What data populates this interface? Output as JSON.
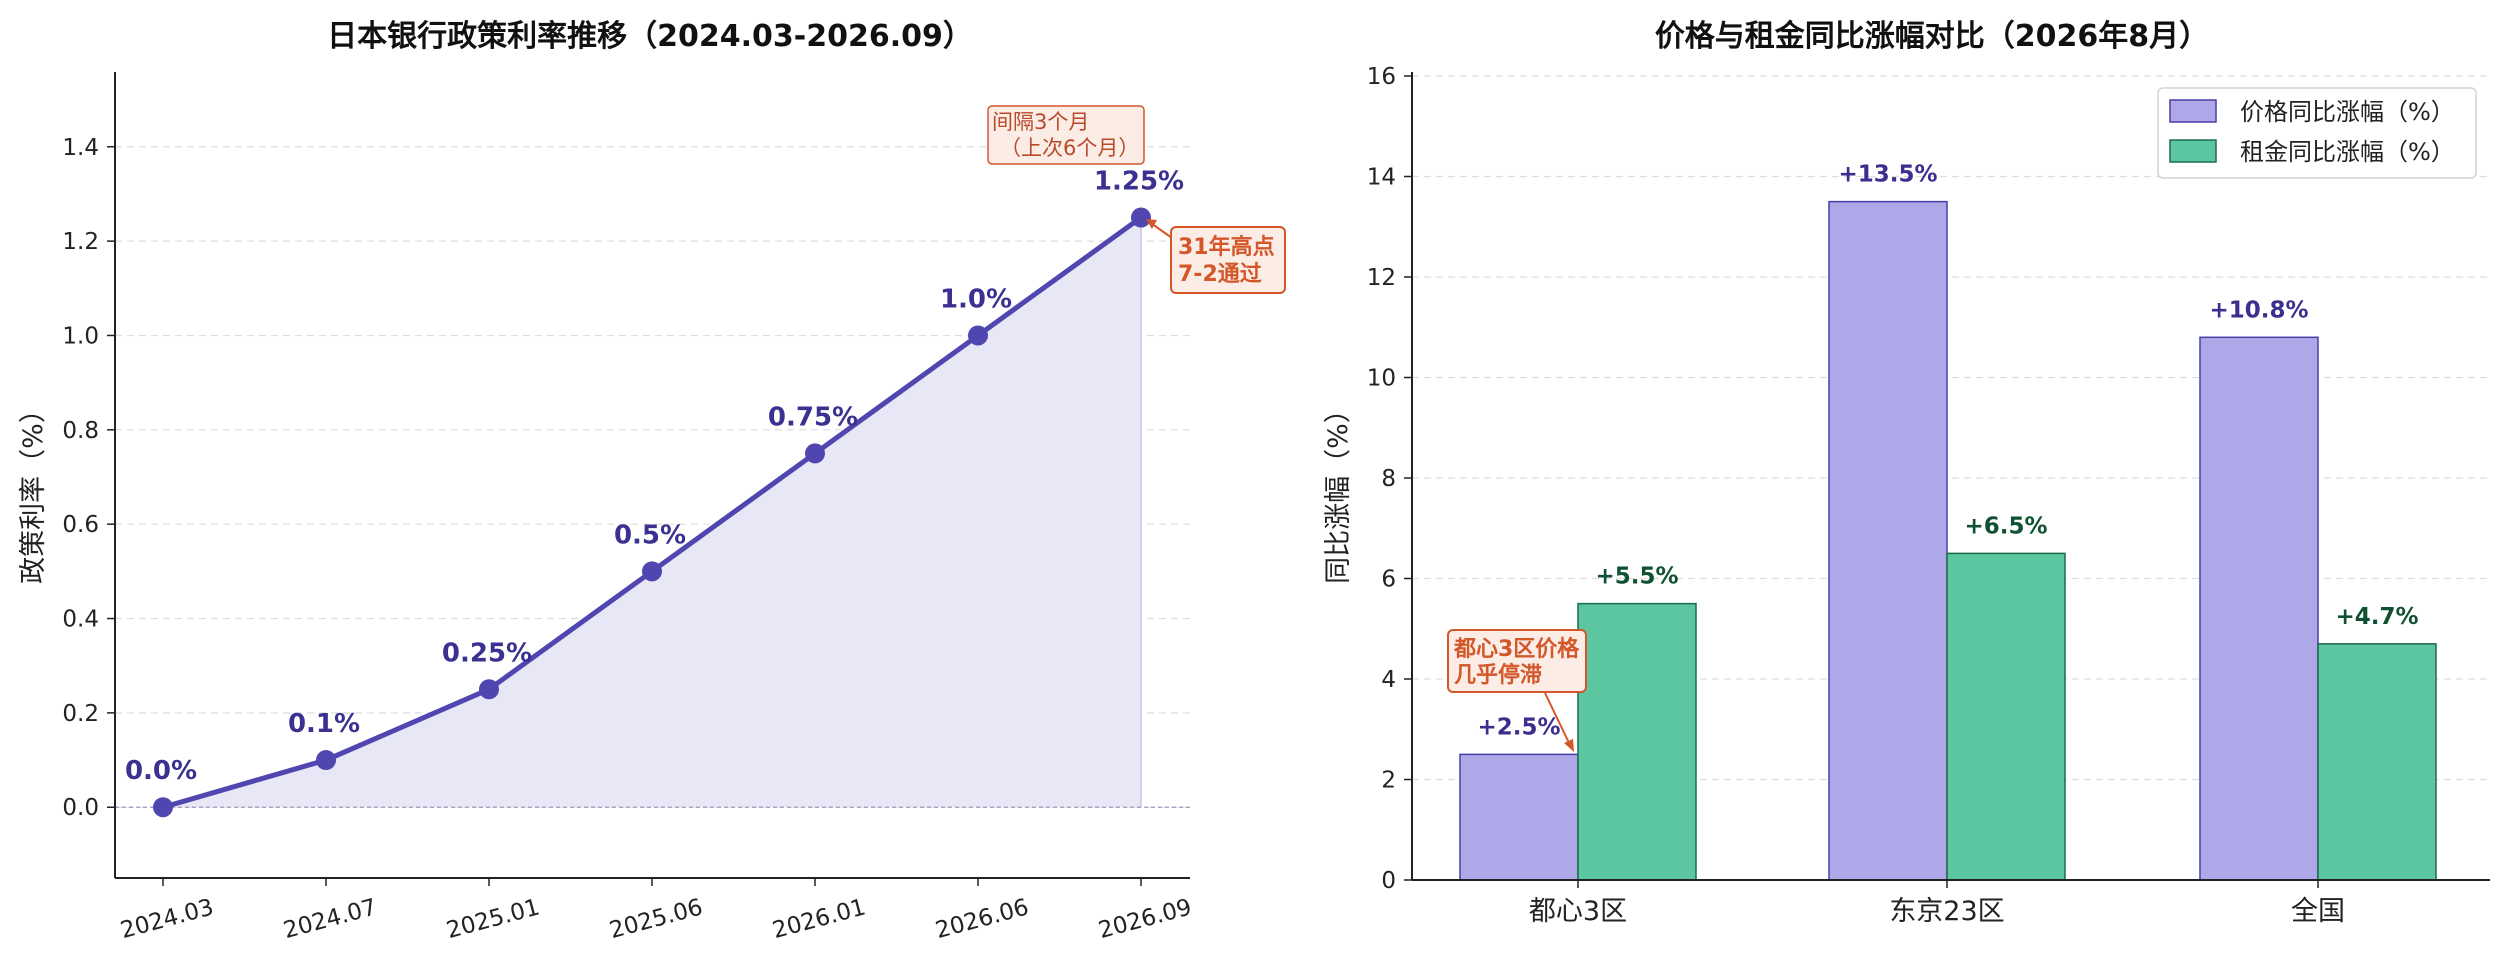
{
  "chart_data": [
    {
      "type": "line",
      "title": "日本银行政策利率推移（2024.03-2026.09）",
      "ylabel": "政策利率（%）",
      "xlabel": "",
      "x": [
        "2024.03",
        "2024.07",
        "2025.01",
        "2025.06",
        "2026.01",
        "2026.06",
        "2026.09"
      ],
      "values": [
        0.0,
        0.1,
        0.25,
        0.5,
        0.75,
        1.0,
        1.25
      ],
      "data_labels": [
        "0.0%",
        "0.1%",
        "0.25%",
        "0.5%",
        "0.75%",
        "1.0%",
        "1.25%"
      ],
      "ylim": [
        -0.15,
        1.55
      ],
      "yticks": [
        "0.0",
        "0.2",
        "0.4",
        "0.6",
        "0.8",
        "1.0",
        "1.2",
        "1.4"
      ],
      "grid": "horizontal dashed",
      "area_fill": true,
      "colors": {
        "line": "#4f46b0",
        "fill": "#e8e7f5",
        "annotation": "#d4572a"
      },
      "annotations": {
        "peak_line1": "31年高点",
        "peak_line2": "7-2通过",
        "interval_line1": "间隔3个月",
        "interval_line2": "（上次6个月）"
      }
    },
    {
      "type": "bar",
      "title": "价格与租金同比涨幅对比（2026年8月）",
      "ylabel": "同比涨幅（%）",
      "xlabel": "",
      "categories": [
        "都心3区",
        "东京23区",
        "全国"
      ],
      "series": [
        {
          "name": "价格同比涨幅（%）",
          "values": [
            2.5,
            13.5,
            10.8
          ],
          "labels": [
            "+2.5%",
            "+13.5%",
            "+10.8%"
          ],
          "color": "#afa8e8",
          "edge": "#4a3fa6"
        },
        {
          "name": "租金同比涨幅（%）",
          "values": [
            5.5,
            6.5,
            4.7
          ],
          "labels": [
            "+5.5%",
            "+6.5%",
            "+4.7%"
          ],
          "color": "#5cc6a0",
          "edge": "#1d6b4d"
        }
      ],
      "ylim": [
        0,
        16
      ],
      "yticks": [
        "0",
        "2",
        "4",
        "6",
        "8",
        "10",
        "12",
        "14",
        "16"
      ],
      "grid": "horizontal dashed",
      "legend": "top-right",
      "annotations": {
        "stall_line1": "都心3区价格",
        "stall_line2": "几乎停滞"
      }
    }
  ]
}
